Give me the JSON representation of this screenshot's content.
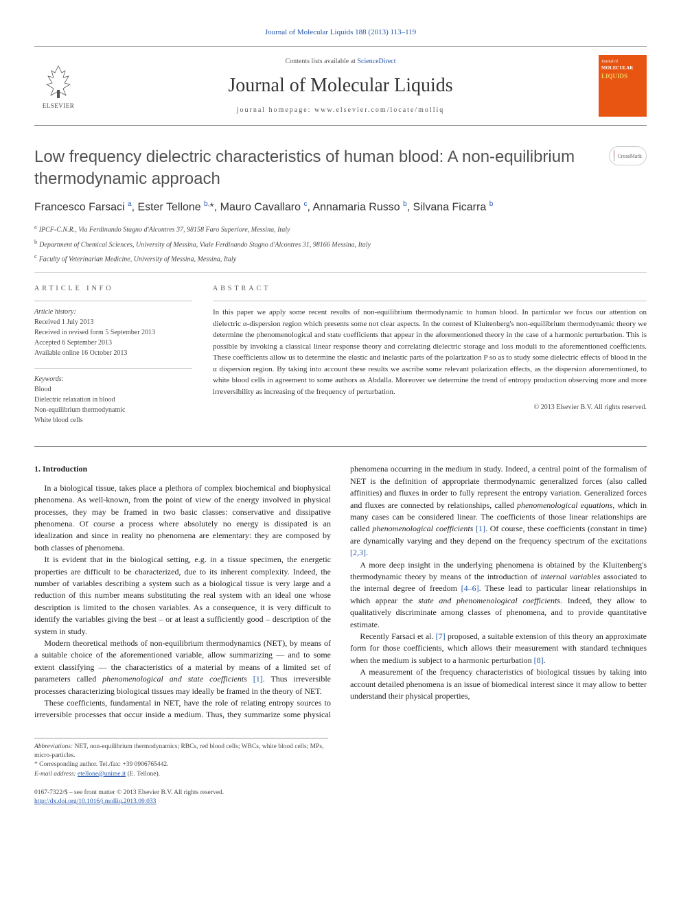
{
  "journal_ref": "Journal of Molecular Liquids 188 (2013) 113–119",
  "header": {
    "contents_prefix": "Contents lists available at ",
    "contents_link": "ScienceDirect",
    "journal_name": "Journal of Molecular Liquids",
    "homepage_prefix": "journal homepage: ",
    "homepage": "www.elsevier.com/locate/molliq",
    "publisher": "ELSEVIER",
    "cover": {
      "line1": "Journal of",
      "line2": "MOLECULAR",
      "line3": "LIQUIDS"
    }
  },
  "crossmark_label": "CrossMark",
  "title": "Low frequency dielectric characteristics of human blood: A non-equilibrium thermodynamic approach",
  "authors_html": "Francesco Farsaci <sup>a</sup>, Ester Tellone <sup>b,</sup>*, Mauro Cavallaro <sup>c</sup>, Annamaria Russo <sup>b</sup>, Silvana Ficarra <sup>b</sup>",
  "affiliations": [
    {
      "sup": "a",
      "text": "IPCF-C.N.R., Via Ferdinando Stagno d'Alcontres 37, 98158 Faro Superiore, Messina, Italy"
    },
    {
      "sup": "b",
      "text": "Department of Chemical Sciences, University of Messina, Viale Ferdinando Stagno d'Alcontres 31, 98166 Messina, Italy"
    },
    {
      "sup": "c",
      "text": "Faculty of Veterinarian Medicine, University of Messina, Messina, Italy"
    }
  ],
  "info": {
    "heading": "article info",
    "history_label": "Article history:",
    "history": [
      "Received 1 July 2013",
      "Received in revised form 5 September 2013",
      "Accepted 6 September 2013",
      "Available online 16 October 2013"
    ],
    "keywords_label": "Keywords:",
    "keywords": [
      "Blood",
      "Dielectric relaxation in blood",
      "Non-equilibrium thermodynamic",
      "White blood cells"
    ]
  },
  "abstract": {
    "heading": "abstract",
    "text": "In this paper we apply some recent results of non-equilibrium thermodynamic to human blood. In particular we focus our attention on dielectric α-dispersion region which presents some not clear aspects. In the contest of Kluitenberg's non-equilibrium thermodynamic theory we determine the phenomenological and state coefficients that appear in the aforementioned theory in the case of a harmonic perturbation. This is possible by invoking a classical linear response theory and correlating dielectric storage and loss moduli to the aforementioned coefficients. These coefficients allow us to determine the elastic and inelastic parts of the polarization P so as to study some dielectric effects of blood in the α dispersion region. By taking into account these results we ascribe some relevant polarization effects, as the dispersion aforementioned, to white blood cells in agreement to some authors as Abdalla. Moreover we determine the trend of entropy production observing more and more irreversibility as increasing of the frequency of perturbation.",
    "copyright": "© 2013 Elsevier B.V. All rights reserved."
  },
  "body": {
    "section_heading": "1. Introduction",
    "paragraphs": [
      "In a biological tissue, takes place a plethora of complex biochemical and biophysical phenomena. As well-known, from the point of view of the energy involved in physical processes, they may be framed in two basic classes: conservative and dissipative phenomena. Of course a process where absolutely no energy is dissipated is an idealization and since in reality no phenomena are elementary: they are composed by both classes of phenomena.",
      "It is evident that in the biological setting, e.g. in a tissue specimen, the energetic properties are difficult to be characterized, due to its inherent complexity. Indeed, the number of variables describing a system such as a biological tissue is very large and a reduction of this number means substituting the real system with an ideal one whose description is limited to the chosen variables. As a consequence, it is very difficult to identify the variables giving the best – or at least a sufficiently good – description of the system in study.",
      "Modern theoretical methods of non-equilibrium thermodynamics (NET), by means of a suitable choice of the aforementioned variable, allow summarizing — and to some extent classifying — the characteristics of a material by means of a limited set of parameters called <span class=\"italic\">phenomenological and state coefficients</span> <span class=\"ref-link\">[1]</span>. Thus irreversible processes characterizing biological tissues may ideally be framed in the theory of NET.",
      "These coefficients, fundamental in NET, have the role of relating entropy sources to irreversible processes that occur inside a medium. Thus, they summarize some physical phenomena occurring in the medium in study. Indeed, a central point of the formalism of NET is the definition of appropriate thermodynamic generalized forces (also called affinities) and fluxes in order to fully represent the entropy variation. Generalized forces and fluxes are connected by relationships, called <span class=\"italic\">phenomenological equations</span>, which in many cases can be considered linear. The coefficients of those linear relationships are called <span class=\"italic\">phenomenological coefficients</span> <span class=\"ref-link\">[1]</span>. Of course, these coefficients (constant in time) are dynamically varying and they depend on the frequency spectrum of the excitations <span class=\"ref-link\">[2,3]</span>.",
      "A more deep insight in the underlying phenomena is obtained by the Kluitenberg's thermodynamic theory by means of the introduction of <span class=\"italic\">internal variables</span> associated to the internal degree of freedom <span class=\"ref-link\">[4–6]</span>. These lead to particular linear relationships in which appear the <span class=\"italic\">state and phenomenological coefficients</span>. Indeed, they allow to qualitatively discriminate among classes of phenomena, and to provide quantitative estimate.",
      "Recently Farsaci et al. <span class=\"ref-link\">[7]</span> proposed, a suitable extension of this theory an approximate form for those coefficients, which allows their measurement with standard techniques when the medium is subject to a harmonic perturbation <span class=\"ref-link\">[8]</span>.",
      "A measurement of the frequency characteristics of biological tissues by taking into account detailed phenomena is an issue of biomedical interest since it may allow to better understand their physical properties,"
    ]
  },
  "footnotes": {
    "abbrev_label": "Abbreviations:",
    "abbrev_text": " NET, non-equilibrium thermodynamics; RBCs, red blood cells; WBCs, white blood cells; MPs, micro-particles.",
    "corr_label": "* Corresponding author. Tel./fax: +39 0906765442.",
    "email_label": "E-mail address: ",
    "email": "etellone@unime.it",
    "email_suffix": " (E. Tellone)."
  },
  "bottom": {
    "issn_line": "0167-7322/$ – see front matter © 2013 Elsevier B.V. All rights reserved.",
    "doi": "http://dx.doi.org/10.1016/j.molliq.2013.09.033"
  },
  "colors": {
    "link": "#2255aa",
    "cover_bg": "#e85412",
    "cover_accent": "#f0d060",
    "text": "#333333",
    "rule": "#999999"
  }
}
